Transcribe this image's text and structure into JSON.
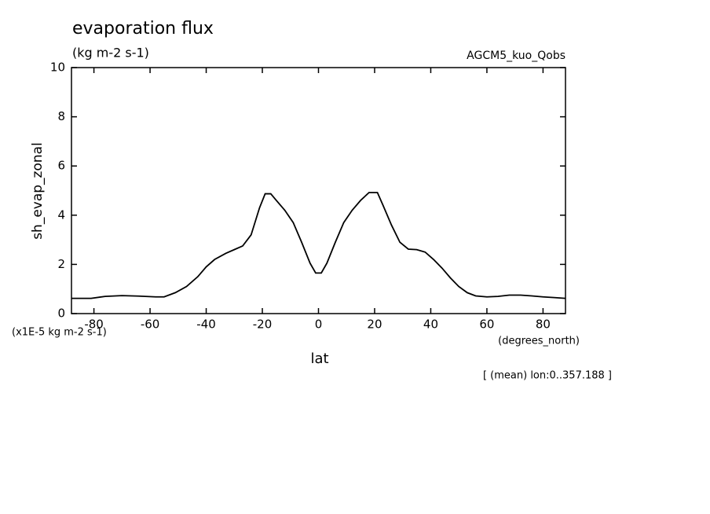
{
  "chart_data": {
    "type": "line",
    "title": "evaporation flux",
    "subtitle": "(kg m-2 s-1)",
    "annotation": "AGCM5_kuo_Qobs",
    "y_label": "sh_evap_zonal",
    "y_units": "(x1E-5 kg m-2 s-1)",
    "x_label": "lat",
    "x_units": "(degrees_north)",
    "footnote": "[ (mean) lon:0..357.188 ]",
    "xlim": [
      -88,
      88
    ],
    "ylim": [
      0,
      10
    ],
    "xticks": [
      -80,
      -60,
      -40,
      -20,
      0,
      20,
      40,
      60,
      80
    ],
    "yticks": [
      0,
      2,
      4,
      6,
      8,
      10
    ],
    "x": [
      -88,
      -81,
      -76,
      -70,
      -64,
      -58,
      -55,
      -51,
      -47,
      -43,
      -40,
      -37,
      -33,
      -30,
      -27,
      -24,
      -21,
      -19,
      -17,
      -15,
      -12,
      -9,
      -6,
      -3,
      -1,
      1,
      3,
      6,
      9,
      12,
      15,
      18,
      21,
      23,
      26,
      29,
      32,
      35,
      38,
      41,
      44,
      47,
      50,
      53,
      56,
      60,
      64,
      68,
      72,
      76,
      80,
      84,
      88
    ],
    "series": [
      {
        "color": "#000000",
        "values": [
          0.62,
          0.62,
          0.7,
          0.73,
          0.71,
          0.68,
          0.68,
          0.85,
          1.1,
          1.5,
          1.9,
          2.2,
          2.45,
          2.6,
          2.75,
          3.2,
          4.3,
          4.87,
          4.87,
          4.6,
          4.2,
          3.7,
          2.9,
          2.05,
          1.65,
          1.65,
          2.05,
          2.9,
          3.7,
          4.2,
          4.6,
          4.92,
          4.92,
          4.4,
          3.6,
          2.9,
          2.62,
          2.6,
          2.5,
          2.2,
          1.85,
          1.45,
          1.1,
          0.85,
          0.72,
          0.68,
          0.7,
          0.75,
          0.75,
          0.72,
          0.68,
          0.65,
          0.62
        ]
      }
    ]
  }
}
